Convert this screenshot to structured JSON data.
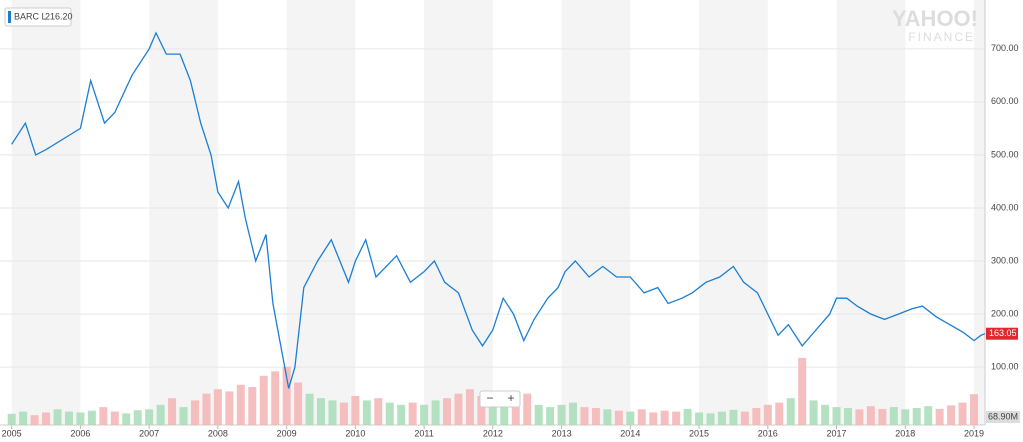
{
  "chart_data": {
    "type": "line",
    "legend_name": "BARC L",
    "legend_value": {
      "value": 216.2,
      "label": "216.20"
    },
    "brand": "YAHOO!",
    "brand_sub": "FINANCE",
    "zoom_out": "−",
    "zoom_in": "+",
    "xlim": [
      2004.83,
      2019.16
    ],
    "xticks": [
      2005,
      2006,
      2007,
      2008,
      2009,
      2010,
      2011,
      2012,
      2013,
      2014,
      2015,
      2016,
      2017,
      2018,
      2019
    ],
    "ylim": [
      -9,
      792
    ],
    "yticks": [
      {
        "value": 100,
        "label": "100.00"
      },
      {
        "value": 200,
        "label": "200.00"
      },
      {
        "value": 300,
        "label": "300.00"
      },
      {
        "value": 400,
        "label": "400.00"
      },
      {
        "value": 500,
        "label": "500.00"
      },
      {
        "value": 600,
        "label": "600.00"
      },
      {
        "value": 700,
        "label": "700.00"
      }
    ],
    "grid": true,
    "series": [
      {
        "name": "BARC L",
        "color": "#1a7fd4",
        "x": [
          2005.0,
          2005.2,
          2005.35,
          2005.5,
          2005.75,
          2006.0,
          2006.15,
          2006.35,
          2006.5,
          2006.75,
          2007.0,
          2007.1,
          2007.25,
          2007.45,
          2007.6,
          2007.75,
          2007.9,
          2008.0,
          2008.15,
          2008.3,
          2008.4,
          2008.55,
          2008.7,
          2008.8,
          2008.9,
          2009.03,
          2009.12,
          2009.25,
          2009.45,
          2009.65,
          2009.9,
          2010.0,
          2010.15,
          2010.3,
          2010.45,
          2010.6,
          2010.8,
          2011.0,
          2011.15,
          2011.3,
          2011.5,
          2011.7,
          2011.85,
          2012.0,
          2012.15,
          2012.3,
          2012.45,
          2012.6,
          2012.8,
          2012.95,
          2013.05,
          2013.2,
          2013.4,
          2013.6,
          2013.8,
          2014.0,
          2014.2,
          2014.4,
          2014.55,
          2014.75,
          2014.9,
          2015.1,
          2015.3,
          2015.5,
          2015.65,
          2015.85,
          2016.0,
          2016.15,
          2016.3,
          2016.5,
          2016.7,
          2016.9,
          2017.0,
          2017.15,
          2017.3,
          2017.5,
          2017.7,
          2017.9,
          2018.1,
          2018.25,
          2018.45,
          2018.65,
          2018.85,
          2019.0,
          2019.1,
          2019.16
        ],
        "values": [
          520,
          560,
          500,
          510,
          530,
          550,
          640,
          560,
          580,
          650,
          700,
          730,
          690,
          690,
          640,
          560,
          500,
          430,
          400,
          450,
          380,
          300,
          350,
          220,
          150,
          60,
          100,
          250,
          300,
          340,
          260,
          300,
          340,
          270,
          290,
          310,
          260,
          280,
          300,
          260,
          240,
          170,
          140,
          170,
          230,
          200,
          150,
          190,
          230,
          250,
          280,
          300,
          270,
          290,
          270,
          270,
          240,
          250,
          220,
          230,
          240,
          260,
          270,
          290,
          260,
          240,
          200,
          160,
          180,
          140,
          170,
          200,
          230,
          230,
          215,
          200,
          190,
          200,
          210,
          215,
          195,
          180,
          165,
          150,
          160,
          163.05
        ]
      }
    ],
    "last_price": 163.05,
    "volume": {
      "ylim": [
        0,
        950
      ],
      "x": [
        2005.0,
        2005.1667,
        2005.3333,
        2005.5,
        2005.6667,
        2005.8333,
        2006.0,
        2006.1667,
        2006.3333,
        2006.5,
        2006.6667,
        2006.8333,
        2007.0,
        2007.1667,
        2007.3333,
        2007.5,
        2007.6667,
        2007.8333,
        2008.0,
        2008.1667,
        2008.3333,
        2008.5,
        2008.6667,
        2008.8333,
        2009.0,
        2009.1667,
        2009.3333,
        2009.5,
        2009.6667,
        2009.8333,
        2010.0,
        2010.1667,
        2010.3333,
        2010.5,
        2010.6667,
        2010.8333,
        2011.0,
        2011.1667,
        2011.3333,
        2011.5,
        2011.6667,
        2011.8333,
        2012.0,
        2012.1667,
        2012.3333,
        2012.5,
        2012.6667,
        2012.8333,
        2013.0,
        2013.1667,
        2013.3333,
        2013.5,
        2013.6667,
        2013.8333,
        2014.0,
        2014.1667,
        2014.3333,
        2014.5,
        2014.6667,
        2014.8333,
        2015.0,
        2015.1667,
        2015.3333,
        2015.5,
        2015.6667,
        2015.8333,
        2016.0,
        2016.1667,
        2016.3333,
        2016.5,
        2016.6667,
        2016.8333,
        2017.0,
        2017.1667,
        2017.3333,
        2017.5,
        2017.6667,
        2017.8333,
        2018.0,
        2018.1667,
        2018.3333,
        2018.5,
        2018.6667,
        2018.8333,
        2019.0
      ],
      "values": [
        25,
        30,
        22,
        28,
        35,
        30,
        28,
        32,
        40,
        30,
        26,
        33,
        35,
        45,
        60,
        40,
        55,
        70,
        80,
        75,
        90,
        85,
        110,
        120,
        130,
        95,
        70,
        60,
        55,
        50,
        65,
        55,
        60,
        50,
        45,
        50,
        45,
        55,
        60,
        70,
        80,
        65,
        55,
        50,
        60,
        70,
        45,
        40,
        45,
        50,
        40,
        38,
        35,
        32,
        30,
        35,
        28,
        32,
        30,
        36,
        28,
        26,
        30,
        34,
        30,
        38,
        45,
        50,
        60,
        150,
        55,
        45,
        40,
        38,
        35,
        42,
        36,
        40,
        35,
        38,
        42,
        36,
        44,
        50,
        68.9
      ],
      "last": {
        "value": 68.9,
        "label": "68.90M"
      }
    }
  }
}
